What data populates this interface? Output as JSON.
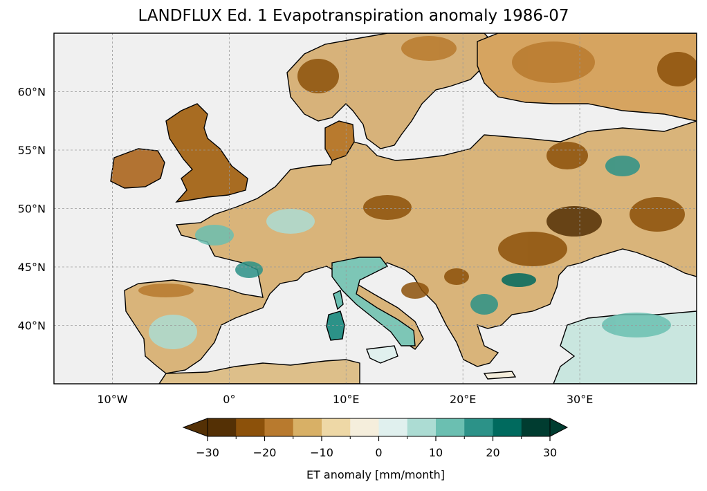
{
  "title": "LANDFLUX Ed. 1 Evapotranspiration anomaly 1986-07",
  "map": {
    "lon_range": [
      -15,
      40
    ],
    "lat_range": [
      35,
      65
    ],
    "lat_ticks": [
      {
        "value": 60,
        "label": "60°N"
      },
      {
        "value": 55,
        "label": "55°N"
      },
      {
        "value": 50,
        "label": "50°N"
      },
      {
        "value": 45,
        "label": "45°N"
      },
      {
        "value": 40,
        "label": "40°N"
      }
    ],
    "lon_ticks": [
      {
        "value": -10,
        "label": "10°W"
      },
      {
        "value": 0,
        "label": "0°"
      },
      {
        "value": 10,
        "label": "10°E"
      },
      {
        "value": 20,
        "label": "20°E"
      },
      {
        "value": 30,
        "label": "30°E"
      }
    ],
    "gridlines": true,
    "sea_color": "#f0f0f0",
    "coastline_color": "#000000"
  },
  "colorbar": {
    "label": "ET anomaly [mm/month]",
    "ticks": [
      "−30",
      "−20",
      "−10",
      "0",
      "10",
      "20",
      "30"
    ],
    "levels": [
      -30,
      -25,
      -20,
      -15,
      -10,
      -5,
      0,
      5,
      10,
      15,
      20,
      25,
      30
    ],
    "colors": [
      "#543005",
      "#8c510a",
      "#b87a2e",
      "#d8b066",
      "#eed8a6",
      "#f5eedc",
      "#e0f0ee",
      "#acdcd3",
      "#6bbfb1",
      "#2c9288",
      "#006a5e",
      "#003c30"
    ],
    "extend": "both"
  }
}
